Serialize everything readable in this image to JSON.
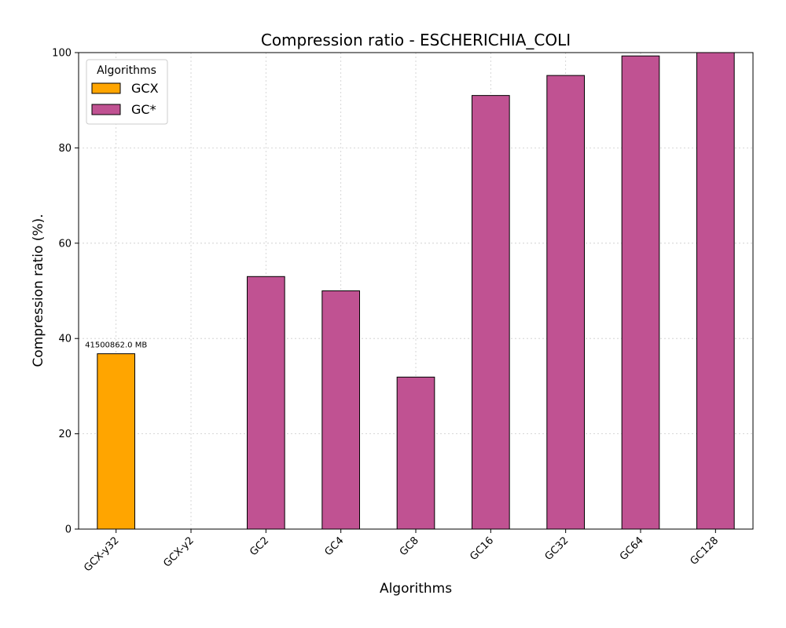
{
  "chart_data": {
    "type": "bar",
    "title": "Compression ratio -  ESCHERICHIA_COLI",
    "xlabel": "Algorithms",
    "ylabel": "Compression ratio (%).",
    "ylim": [
      0,
      100
    ],
    "yticks": [
      0,
      20,
      40,
      60,
      80,
      100
    ],
    "grid": true,
    "categories": [
      "GCX-y32",
      "GCX-y2",
      "GC2",
      "GC4",
      "GC8",
      "GC16",
      "GC32",
      "GC64",
      "GC128"
    ],
    "series": [
      {
        "name": "GCX",
        "color": "#ffa500",
        "values": [
          36.8,
          0,
          null,
          null,
          null,
          null,
          null,
          null,
          null
        ]
      },
      {
        "name": "GC*",
        "color": "#c05292",
        "values": [
          null,
          null,
          53.0,
          50.0,
          31.9,
          91.0,
          95.2,
          99.3,
          100
        ]
      }
    ],
    "data_labels": [
      {
        "category": "GCX-y32",
        "text": "41500862.0 MB"
      }
    ],
    "legend": {
      "title": "Algorithms",
      "placement": "top-left",
      "entries": [
        "GCX",
        "GC*"
      ]
    }
  }
}
